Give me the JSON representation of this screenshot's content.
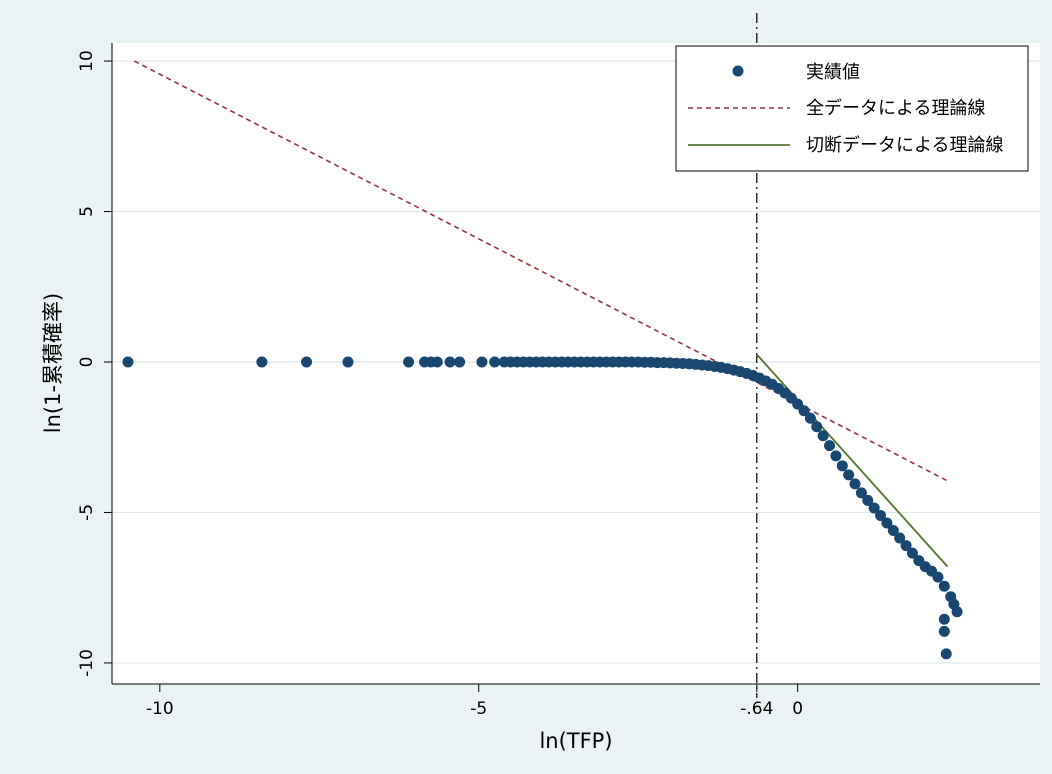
{
  "chart_data": {
    "type": "scatter",
    "title": "",
    "xlabel": "ln(TFP)",
    "ylabel": "ln(1-累積確率)",
    "xlim": [
      -10.75,
      3.8
    ],
    "ylim": [
      -10.7,
      10.6
    ],
    "x_ticks": [
      {
        "value": -10,
        "label": "-10"
      },
      {
        "value": -5,
        "label": "-5"
      },
      {
        "value": -0.64,
        "label": "-.64"
      },
      {
        "value": 0,
        "label": "0"
      }
    ],
    "y_ticks": [
      {
        "value": 10,
        "label": "10"
      },
      {
        "value": 5,
        "label": "5"
      },
      {
        "value": 0,
        "label": "0"
      },
      {
        "value": -5,
        "label": "-5"
      },
      {
        "value": -10,
        "label": "-10"
      }
    ],
    "grid": true,
    "legend_position": "top-right",
    "vline": {
      "x": -0.64,
      "style": "dash-dot",
      "color": "#000000"
    },
    "colors": {
      "background": "#eaf2f3",
      "plot_background": "#ffffff",
      "grid": "#dde7ea",
      "points": "#1a476f",
      "full_fit": "#90353b",
      "truncated_fit": "#55752f"
    },
    "series": [
      {
        "name": "実績値",
        "kind": "scatter",
        "color": "#1a476f",
        "points": [
          [
            -10.5,
            0
          ],
          [
            -8.4,
            0
          ],
          [
            -7.7,
            0
          ],
          [
            -7.05,
            0
          ],
          [
            -6.1,
            0
          ],
          [
            -5.85,
            0
          ],
          [
            -5.75,
            0
          ],
          [
            -5.65,
            0
          ],
          [
            -5.45,
            0
          ],
          [
            -5.3,
            0
          ],
          [
            -4.95,
            0
          ],
          [
            -4.75,
            0
          ],
          [
            -4.6,
            0
          ],
          [
            -4.5,
            0
          ],
          [
            -4.4,
            0
          ],
          [
            -4.3,
            0
          ],
          [
            -4.2,
            0
          ],
          [
            -4.1,
            0
          ],
          [
            -4.0,
            0
          ],
          [
            -3.9,
            0
          ],
          [
            -3.8,
            0
          ],
          [
            -3.7,
            0
          ],
          [
            -3.6,
            0
          ],
          [
            -3.5,
            0
          ],
          [
            -3.4,
            0
          ],
          [
            -3.3,
            0
          ],
          [
            -3.2,
            0
          ],
          [
            -3.1,
            0
          ],
          [
            -3.0,
            0
          ],
          [
            -2.9,
            0
          ],
          [
            -2.8,
            0
          ],
          [
            -2.7,
            0
          ],
          [
            -2.6,
            0
          ],
          [
            -2.5,
            0
          ],
          [
            -2.4,
            -0.01
          ],
          [
            -2.3,
            -0.01
          ],
          [
            -2.2,
            -0.02
          ],
          [
            -2.1,
            -0.02
          ],
          [
            -2.0,
            -0.03
          ],
          [
            -1.9,
            -0.04
          ],
          [
            -1.8,
            -0.05
          ],
          [
            -1.7,
            -0.06
          ],
          [
            -1.6,
            -0.08
          ],
          [
            -1.5,
            -0.1
          ],
          [
            -1.4,
            -0.12
          ],
          [
            -1.3,
            -0.15
          ],
          [
            -1.2,
            -0.18
          ],
          [
            -1.1,
            -0.22
          ],
          [
            -1.0,
            -0.27
          ],
          [
            -0.9,
            -0.32
          ],
          [
            -0.8,
            -0.38
          ],
          [
            -0.7,
            -0.45
          ],
          [
            -0.6,
            -0.53
          ],
          [
            -0.5,
            -0.63
          ],
          [
            -0.4,
            -0.74
          ],
          [
            -0.3,
            -0.88
          ],
          [
            -0.2,
            -1.03
          ],
          [
            -0.1,
            -1.2
          ],
          [
            0.0,
            -1.4
          ],
          [
            0.1,
            -1.62
          ],
          [
            0.2,
            -1.87
          ],
          [
            0.3,
            -2.15
          ],
          [
            0.4,
            -2.45
          ],
          [
            0.5,
            -2.78
          ],
          [
            0.6,
            -3.12
          ],
          [
            0.7,
            -3.45
          ],
          [
            0.8,
            -3.75
          ],
          [
            0.9,
            -4.05
          ],
          [
            1.0,
            -4.35
          ],
          [
            1.1,
            -4.6
          ],
          [
            1.2,
            -4.85
          ],
          [
            1.3,
            -5.1
          ],
          [
            1.4,
            -5.35
          ],
          [
            1.5,
            -5.6
          ],
          [
            1.6,
            -5.85
          ],
          [
            1.7,
            -6.1
          ],
          [
            1.8,
            -6.35
          ],
          [
            1.9,
            -6.6
          ],
          [
            2.0,
            -6.8
          ],
          [
            2.1,
            -6.95
          ],
          [
            2.2,
            -7.15
          ],
          [
            2.3,
            -7.45
          ],
          [
            2.4,
            -7.8
          ],
          [
            2.45,
            -8.05
          ],
          [
            2.5,
            -8.3
          ],
          [
            2.3,
            -8.55
          ],
          [
            2.3,
            -8.95
          ],
          [
            2.33,
            -9.7
          ]
        ]
      },
      {
        "name": "全データによる理論線",
        "kind": "line",
        "style": "dashed",
        "color": "#90353b",
        "points": [
          [
            -10.4,
            10.0
          ],
          [
            2.35,
            -3.95
          ]
        ]
      },
      {
        "name": "切断データによる理論線",
        "kind": "line",
        "style": "solid",
        "color": "#55752f",
        "points": [
          [
            -0.64,
            0.25
          ],
          [
            2.35,
            -6.8
          ]
        ]
      }
    ]
  }
}
